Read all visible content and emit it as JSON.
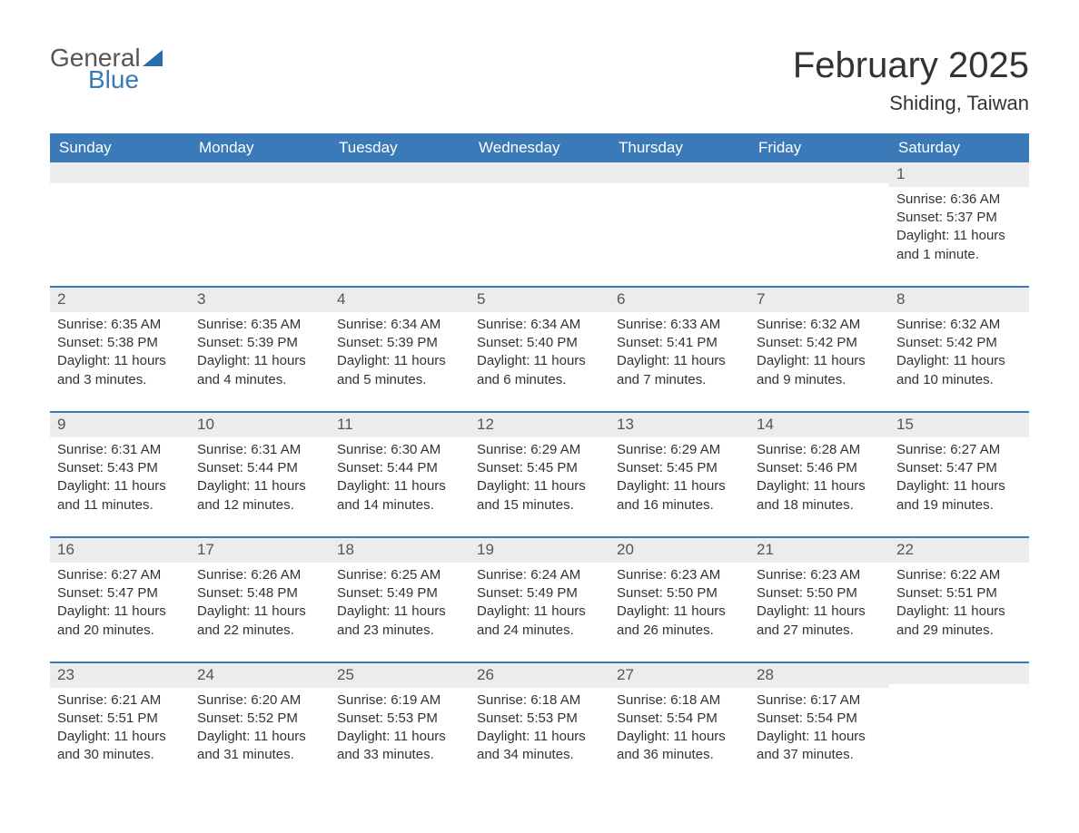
{
  "logo": {
    "word1": "General",
    "word2": "Blue"
  },
  "header": {
    "month_title": "February 2025",
    "location": "Shiding, Taiwan"
  },
  "colors": {
    "header_bar": "#3b7ab8",
    "daynum_bg": "#ececec",
    "text": "#333333",
    "logo_blue": "#3b7ab8",
    "logo_gray": "#555555",
    "background": "#ffffff"
  },
  "day_names": [
    "Sunday",
    "Monday",
    "Tuesday",
    "Wednesday",
    "Thursday",
    "Friday",
    "Saturday"
  ],
  "weeks": [
    [
      {
        "empty": true
      },
      {
        "empty": true
      },
      {
        "empty": true
      },
      {
        "empty": true
      },
      {
        "empty": true
      },
      {
        "empty": true
      },
      {
        "day": "1",
        "sunrise": "Sunrise: 6:36 AM",
        "sunset": "Sunset: 5:37 PM",
        "daylight1": "Daylight: 11 hours",
        "daylight2": "and 1 minute."
      }
    ],
    [
      {
        "day": "2",
        "sunrise": "Sunrise: 6:35 AM",
        "sunset": "Sunset: 5:38 PM",
        "daylight1": "Daylight: 11 hours",
        "daylight2": "and 3 minutes."
      },
      {
        "day": "3",
        "sunrise": "Sunrise: 6:35 AM",
        "sunset": "Sunset: 5:39 PM",
        "daylight1": "Daylight: 11 hours",
        "daylight2": "and 4 minutes."
      },
      {
        "day": "4",
        "sunrise": "Sunrise: 6:34 AM",
        "sunset": "Sunset: 5:39 PM",
        "daylight1": "Daylight: 11 hours",
        "daylight2": "and 5 minutes."
      },
      {
        "day": "5",
        "sunrise": "Sunrise: 6:34 AM",
        "sunset": "Sunset: 5:40 PM",
        "daylight1": "Daylight: 11 hours",
        "daylight2": "and 6 minutes."
      },
      {
        "day": "6",
        "sunrise": "Sunrise: 6:33 AM",
        "sunset": "Sunset: 5:41 PM",
        "daylight1": "Daylight: 11 hours",
        "daylight2": "and 7 minutes."
      },
      {
        "day": "7",
        "sunrise": "Sunrise: 6:32 AM",
        "sunset": "Sunset: 5:42 PM",
        "daylight1": "Daylight: 11 hours",
        "daylight2": "and 9 minutes."
      },
      {
        "day": "8",
        "sunrise": "Sunrise: 6:32 AM",
        "sunset": "Sunset: 5:42 PM",
        "daylight1": "Daylight: 11 hours",
        "daylight2": "and 10 minutes."
      }
    ],
    [
      {
        "day": "9",
        "sunrise": "Sunrise: 6:31 AM",
        "sunset": "Sunset: 5:43 PM",
        "daylight1": "Daylight: 11 hours",
        "daylight2": "and 11 minutes."
      },
      {
        "day": "10",
        "sunrise": "Sunrise: 6:31 AM",
        "sunset": "Sunset: 5:44 PM",
        "daylight1": "Daylight: 11 hours",
        "daylight2": "and 12 minutes."
      },
      {
        "day": "11",
        "sunrise": "Sunrise: 6:30 AM",
        "sunset": "Sunset: 5:44 PM",
        "daylight1": "Daylight: 11 hours",
        "daylight2": "and 14 minutes."
      },
      {
        "day": "12",
        "sunrise": "Sunrise: 6:29 AM",
        "sunset": "Sunset: 5:45 PM",
        "daylight1": "Daylight: 11 hours",
        "daylight2": "and 15 minutes."
      },
      {
        "day": "13",
        "sunrise": "Sunrise: 6:29 AM",
        "sunset": "Sunset: 5:45 PM",
        "daylight1": "Daylight: 11 hours",
        "daylight2": "and 16 minutes."
      },
      {
        "day": "14",
        "sunrise": "Sunrise: 6:28 AM",
        "sunset": "Sunset: 5:46 PM",
        "daylight1": "Daylight: 11 hours",
        "daylight2": "and 18 minutes."
      },
      {
        "day": "15",
        "sunrise": "Sunrise: 6:27 AM",
        "sunset": "Sunset: 5:47 PM",
        "daylight1": "Daylight: 11 hours",
        "daylight2": "and 19 minutes."
      }
    ],
    [
      {
        "day": "16",
        "sunrise": "Sunrise: 6:27 AM",
        "sunset": "Sunset: 5:47 PM",
        "daylight1": "Daylight: 11 hours",
        "daylight2": "and 20 minutes."
      },
      {
        "day": "17",
        "sunrise": "Sunrise: 6:26 AM",
        "sunset": "Sunset: 5:48 PM",
        "daylight1": "Daylight: 11 hours",
        "daylight2": "and 22 minutes."
      },
      {
        "day": "18",
        "sunrise": "Sunrise: 6:25 AM",
        "sunset": "Sunset: 5:49 PM",
        "daylight1": "Daylight: 11 hours",
        "daylight2": "and 23 minutes."
      },
      {
        "day": "19",
        "sunrise": "Sunrise: 6:24 AM",
        "sunset": "Sunset: 5:49 PM",
        "daylight1": "Daylight: 11 hours",
        "daylight2": "and 24 minutes."
      },
      {
        "day": "20",
        "sunrise": "Sunrise: 6:23 AM",
        "sunset": "Sunset: 5:50 PM",
        "daylight1": "Daylight: 11 hours",
        "daylight2": "and 26 minutes."
      },
      {
        "day": "21",
        "sunrise": "Sunrise: 6:23 AM",
        "sunset": "Sunset: 5:50 PM",
        "daylight1": "Daylight: 11 hours",
        "daylight2": "and 27 minutes."
      },
      {
        "day": "22",
        "sunrise": "Sunrise: 6:22 AM",
        "sunset": "Sunset: 5:51 PM",
        "daylight1": "Daylight: 11 hours",
        "daylight2": "and 29 minutes."
      }
    ],
    [
      {
        "day": "23",
        "sunrise": "Sunrise: 6:21 AM",
        "sunset": "Sunset: 5:51 PM",
        "daylight1": "Daylight: 11 hours",
        "daylight2": "and 30 minutes."
      },
      {
        "day": "24",
        "sunrise": "Sunrise: 6:20 AM",
        "sunset": "Sunset: 5:52 PM",
        "daylight1": "Daylight: 11 hours",
        "daylight2": "and 31 minutes."
      },
      {
        "day": "25",
        "sunrise": "Sunrise: 6:19 AM",
        "sunset": "Sunset: 5:53 PM",
        "daylight1": "Daylight: 11 hours",
        "daylight2": "and 33 minutes."
      },
      {
        "day": "26",
        "sunrise": "Sunrise: 6:18 AM",
        "sunset": "Sunset: 5:53 PM",
        "daylight1": "Daylight: 11 hours",
        "daylight2": "and 34 minutes."
      },
      {
        "day": "27",
        "sunrise": "Sunrise: 6:18 AM",
        "sunset": "Sunset: 5:54 PM",
        "daylight1": "Daylight: 11 hours",
        "daylight2": "and 36 minutes."
      },
      {
        "day": "28",
        "sunrise": "Sunrise: 6:17 AM",
        "sunset": "Sunset: 5:54 PM",
        "daylight1": "Daylight: 11 hours",
        "daylight2": "and 37 minutes."
      },
      {
        "empty": true
      }
    ]
  ]
}
